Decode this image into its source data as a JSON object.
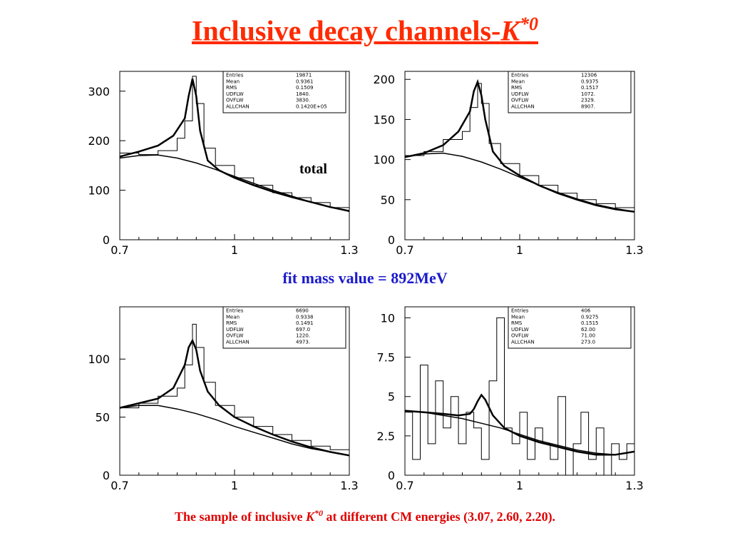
{
  "slide": {
    "title_text": "Inclusive decay channels-",
    "title_particle": "K",
    "title_superscript": "*0",
    "fit_note": "fit mass value = 892MeV",
    "caption_before": "The sample of inclusive ",
    "caption_particle": "K",
    "caption_superscript": "*0",
    "caption_after": " at different CM energies (3.07, 2.60, 2.20)."
  },
  "colors": {
    "title": "#ff2a00",
    "fit_note": "#1a1acc",
    "caption": "#e00000",
    "plot_ink": "#000000"
  },
  "chart_data": [
    {
      "type": "line",
      "panel": "top-left",
      "label": "total",
      "xlim": [
        0.7,
        1.3
      ],
      "ylim": [
        0,
        340
      ],
      "xticks": [
        "0.7",
        "1",
        "1.3"
      ],
      "yticks": [
        {
          "v": 0,
          "t": "0"
        },
        {
          "v": 100,
          "t": "100"
        },
        {
          "v": 200,
          "t": "200"
        },
        {
          "v": 300,
          "t": "300"
        }
      ],
      "stats": [
        {
          "k": "Entries",
          "v": "19871"
        },
        {
          "k": "Mean",
          "v": "0.9361"
        },
        {
          "k": "RMS",
          "v": "0.1509"
        },
        {
          "k": "UDFLW",
          "v": "1840."
        },
        {
          "k": "OVFLW",
          "v": "3830."
        },
        {
          "k": "ALLCHAN",
          "v": "0.1420E+05"
        }
      ],
      "histogram": {
        "x": [
          0.7,
          0.75,
          0.8,
          0.85,
          0.87,
          0.89,
          0.9,
          0.92,
          0.95,
          1.0,
          1.05,
          1.1,
          1.15,
          1.2,
          1.25,
          1.3
        ],
        "y": [
          175,
          172,
          180,
          205,
          240,
          330,
          275,
          185,
          150,
          125,
          110,
          95,
          85,
          75,
          65,
          55
        ]
      },
      "fit_total": {
        "x": [
          0.7,
          0.75,
          0.8,
          0.84,
          0.87,
          0.88,
          0.89,
          0.9,
          0.91,
          0.93,
          0.96,
          1.0,
          1.05,
          1.1,
          1.15,
          1.2,
          1.25,
          1.3
        ],
        "y": [
          168,
          178,
          190,
          210,
          245,
          290,
          325,
          290,
          220,
          160,
          140,
          125,
          110,
          97,
          86,
          76,
          66,
          58
        ]
      },
      "fit_background": {
        "x": [
          0.7,
          0.75,
          0.8,
          0.85,
          0.9,
          0.95,
          1.0,
          1.05,
          1.1,
          1.15,
          1.2,
          1.25,
          1.3
        ],
        "y": [
          165,
          170,
          171,
          165,
          155,
          142,
          128,
          114,
          100,
          88,
          76,
          66,
          57
        ]
      }
    },
    {
      "type": "line",
      "panel": "top-right",
      "label": "",
      "xlim": [
        0.7,
        1.3
      ],
      "ylim": [
        0,
        210
      ],
      "xticks": [
        "0.7",
        "1",
        "1.3"
      ],
      "yticks": [
        {
          "v": 0,
          "t": "0"
        },
        {
          "v": 50,
          "t": "50"
        },
        {
          "v": 100,
          "t": "100"
        },
        {
          "v": 150,
          "t": "150"
        },
        {
          "v": 200,
          "t": "200"
        }
      ],
      "stats": [
        {
          "k": "Entries",
          "v": "12306"
        },
        {
          "k": "Mean",
          "v": "0.9375"
        },
        {
          "k": "RMS",
          "v": "0.1517"
        },
        {
          "k": "UDFLW",
          "v": "1072."
        },
        {
          "k": "OVFLW",
          "v": "2329."
        },
        {
          "k": "ALLCHAN",
          "v": "8907."
        }
      ],
      "histogram": {
        "x": [
          0.7,
          0.75,
          0.8,
          0.85,
          0.87,
          0.89,
          0.9,
          0.92,
          0.95,
          1.0,
          1.05,
          1.1,
          1.15,
          1.2,
          1.25,
          1.3
        ],
        "y": [
          105,
          110,
          125,
          135,
          165,
          195,
          170,
          120,
          95,
          80,
          68,
          58,
          50,
          45,
          40,
          38
        ]
      },
      "fit_total": {
        "x": [
          0.7,
          0.75,
          0.8,
          0.84,
          0.87,
          0.88,
          0.89,
          0.9,
          0.91,
          0.93,
          0.96,
          1.0,
          1.05,
          1.1,
          1.15,
          1.2,
          1.25,
          1.3
        ],
        "y": [
          103,
          108,
          118,
          135,
          160,
          185,
          197,
          180,
          150,
          110,
          92,
          80,
          68,
          58,
          50,
          43,
          38,
          35
        ]
      },
      "fit_background": {
        "x": [
          0.7,
          0.75,
          0.8,
          0.85,
          0.9,
          0.95,
          1.0,
          1.05,
          1.1,
          1.15,
          1.2,
          1.25,
          1.3
        ],
        "y": [
          103,
          107,
          108,
          104,
          97,
          88,
          78,
          68,
          59,
          51,
          44,
          39,
          35
        ]
      }
    },
    {
      "type": "line",
      "panel": "bottom-left",
      "label": "",
      "xlim": [
        0.7,
        1.3
      ],
      "ylim": [
        0,
        145
      ],
      "xticks": [
        "0.7",
        "1",
        "1.3"
      ],
      "yticks": [
        {
          "v": 0,
          "t": "0"
        },
        {
          "v": 50,
          "t": "50"
        },
        {
          "v": 100,
          "t": "100"
        }
      ],
      "stats": [
        {
          "k": "Entries",
          "v": "6690"
        },
        {
          "k": "Mean",
          "v": "0.9338"
        },
        {
          "k": "RMS",
          "v": "0.1491"
        },
        {
          "k": "UDFLW",
          "v": "697.0"
        },
        {
          "k": "OVFLW",
          "v": "1220."
        },
        {
          "k": "ALLCHAN",
          "v": "4973."
        }
      ],
      "histogram": {
        "x": [
          0.7,
          0.75,
          0.8,
          0.85,
          0.87,
          0.89,
          0.9,
          0.92,
          0.95,
          1.0,
          1.05,
          1.1,
          1.15,
          1.2,
          1.25,
          1.3
        ],
        "y": [
          58,
          62,
          68,
          75,
          95,
          130,
          110,
          80,
          60,
          50,
          42,
          35,
          30,
          25,
          22,
          18
        ]
      },
      "fit_total": {
        "x": [
          0.7,
          0.75,
          0.8,
          0.84,
          0.87,
          0.88,
          0.89,
          0.9,
          0.91,
          0.93,
          0.96,
          1.0,
          1.05,
          1.1,
          1.15,
          1.2,
          1.25,
          1.3
        ],
        "y": [
          58,
          62,
          66,
          75,
          95,
          110,
          116,
          108,
          90,
          72,
          60,
          50,
          42,
          35,
          29,
          24,
          20,
          17
        ]
      },
      "fit_background": {
        "x": [
          0.7,
          0.75,
          0.8,
          0.85,
          0.9,
          0.95,
          1.0,
          1.05,
          1.1,
          1.15,
          1.2,
          1.25,
          1.3
        ],
        "y": [
          58,
          60,
          60,
          57,
          53,
          48,
          42,
          37,
          32,
          27,
          23,
          20,
          17
        ]
      }
    },
    {
      "type": "line",
      "panel": "bottom-right",
      "label": "",
      "xlim": [
        0.7,
        1.3
      ],
      "ylim": [
        0,
        10.7
      ],
      "xticks": [
        "0.7",
        "1",
        "1.3"
      ],
      "yticks": [
        {
          "v": 0,
          "t": "0"
        },
        {
          "v": 2.5,
          "t": "2.5"
        },
        {
          "v": 5,
          "t": "5"
        },
        {
          "v": 7.5,
          "t": "7.5"
        },
        {
          "v": 10,
          "t": "10"
        }
      ],
      "stats": [
        {
          "k": "Entries",
          "v": "406"
        },
        {
          "k": "Mean",
          "v": "0.9275"
        },
        {
          "k": "RMS",
          "v": "0.1515"
        },
        {
          "k": "UDFLW",
          "v": "62.00"
        },
        {
          "k": "OVFLW",
          "v": "71.00"
        },
        {
          "k": "ALLCHAN",
          "v": "273.0"
        }
      ],
      "histogram": {
        "x": [
          0.7,
          0.72,
          0.74,
          0.76,
          0.78,
          0.8,
          0.82,
          0.84,
          0.86,
          0.88,
          0.9,
          0.92,
          0.94,
          0.96,
          0.98,
          1.0,
          1.02,
          1.04,
          1.06,
          1.08,
          1.1,
          1.12,
          1.14,
          1.16,
          1.18,
          1.2,
          1.22,
          1.24,
          1.26,
          1.28,
          1.3
        ],
        "y": [
          4,
          1,
          7,
          2,
          6,
          3,
          5,
          2,
          4,
          3,
          1,
          6,
          10,
          3,
          2,
          4,
          1,
          3,
          2,
          1,
          5,
          0,
          2,
          4,
          1,
          3,
          0,
          2,
          1,
          2,
          1
        ]
      },
      "fit_total": {
        "x": [
          0.7,
          0.75,
          0.8,
          0.84,
          0.87,
          0.88,
          0.89,
          0.9,
          0.91,
          0.93,
          0.96,
          1.0,
          1.05,
          1.1,
          1.15,
          1.2,
          1.25,
          1.3
        ],
        "y": [
          4.1,
          4.0,
          3.9,
          3.8,
          3.9,
          4.2,
          4.7,
          5.1,
          4.8,
          3.8,
          3.0,
          2.5,
          2.1,
          1.8,
          1.5,
          1.3,
          1.3,
          1.5
        ]
      },
      "fit_background": {
        "x": [
          0.7,
          0.75,
          0.8,
          0.85,
          0.9,
          0.95,
          1.0,
          1.05,
          1.1,
          1.15,
          1.2,
          1.25,
          1.3
        ],
        "y": [
          4.1,
          4.0,
          3.8,
          3.6,
          3.3,
          3.0,
          2.6,
          2.2,
          1.9,
          1.6,
          1.4,
          1.3,
          1.5
        ]
      }
    }
  ]
}
